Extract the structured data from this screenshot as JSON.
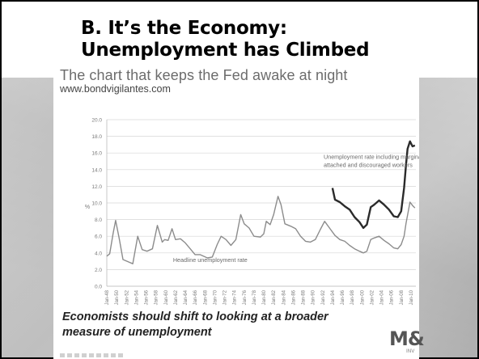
{
  "slide": {
    "title_line1": "B. It’s the Economy:",
    "title_line2": "Unemployment has Climbed"
  },
  "panel": {
    "heading": "The chart that keeps the Fed awake at night",
    "url": "www.bondvigilantes.com",
    "caption": "Economists should shift to looking at a broader measure of unemployment",
    "logo_text": "M&",
    "logo_sub": "INV"
  },
  "colors": {
    "headline_series": "#8c8c8c",
    "broad_series": "#2a2a2a",
    "grid": "#d6d6d6",
    "axis_text": "#7a7a7a"
  },
  "chart_data": {
    "type": "line",
    "title": "",
    "ylabel": "%",
    "xlabel": "",
    "ylim": [
      0,
      20
    ],
    "xlim": [
      1948,
      2011
    ],
    "yticks": [
      "0.0",
      "2.0",
      "4.0",
      "6.0",
      "8.0",
      "10.0",
      "12.0",
      "14.0",
      "16.0",
      "18.0",
      "20.0"
    ],
    "xticks": [
      "Jan-48",
      "Jan-50",
      "Jan-52",
      "Jan-54",
      "Jan-56",
      "Jan-58",
      "Jan-60",
      "Jan-62",
      "Jan-64",
      "Jan-66",
      "Jan-68",
      "Jan-70",
      "Jan-72",
      "Jan-74",
      "Jan-76",
      "Jan-78",
      "Jan-80",
      "Jan-82",
      "Jan-84",
      "Jan-86",
      "Jan-88",
      "Jan-90",
      "Jan-92",
      "Jan-94",
      "Jan-96",
      "Jan-98",
      "Jan-00",
      "Jan-02",
      "Jan-04",
      "Jan-06",
      "Jan-08",
      "Jan-10"
    ],
    "grid": true,
    "annotations": [
      {
        "text": "Unemployment rate including marginally",
        "x": 1992.2,
        "y": 15.3
      },
      {
        "text": "attached and discouraged workers",
        "x": 1992.2,
        "y": 14.3
      },
      {
        "text": "Headline unemployment rate",
        "x": 1961.5,
        "y": 2.9
      }
    ],
    "series": [
      {
        "name": "Headline unemployment rate",
        "x": [
          1948,
          1948.6,
          1949.3,
          1949.8,
          1950.5,
          1951.3,
          1952.5,
          1953.3,
          1954.3,
          1955.2,
          1956.2,
          1957.3,
          1958.3,
          1959.3,
          1959.8,
          1960.5,
          1961.3,
          1962.0,
          1963.0,
          1964.0,
          1965.0,
          1966.0,
          1967.0,
          1968.5,
          1969.5,
          1970.5,
          1971.3,
          1972.3,
          1973.3,
          1974.3,
          1975.3,
          1976.0,
          1977.0,
          1978.0,
          1979.3,
          1980.0,
          1980.5,
          1981.3,
          1982.0,
          1982.9,
          1983.5,
          1984.3,
          1985.5,
          1986.5,
          1987.5,
          1988.5,
          1989.5,
          1990.5,
          1991.5,
          1992.4,
          1993.5,
          1994.5,
          1995.5,
          1996.5,
          1997.5,
          1998.5,
          1999.5,
          2000.3,
          2001.0,
          2001.8,
          2002.5,
          2003.5,
          2004.5,
          2005.5,
          2006.5,
          2007.3,
          2008.0,
          2008.6,
          2009.0,
          2009.8,
          2010.3,
          2010.8
        ],
        "values": [
          3.6,
          3.9,
          6.4,
          7.9,
          5.8,
          3.2,
          2.9,
          2.7,
          6.0,
          4.4,
          4.2,
          4.5,
          7.3,
          5.3,
          5.6,
          5.5,
          6.9,
          5.6,
          5.7,
          5.2,
          4.5,
          3.8,
          3.8,
          3.4,
          3.5,
          5.0,
          6.0,
          5.6,
          4.9,
          5.6,
          8.6,
          7.5,
          7.0,
          6.0,
          5.9,
          6.3,
          7.8,
          7.4,
          8.6,
          10.8,
          9.8,
          7.5,
          7.2,
          6.9,
          6.0,
          5.4,
          5.3,
          5.6,
          6.8,
          7.8,
          6.9,
          6.1,
          5.6,
          5.4,
          4.9,
          4.5,
          4.2,
          4.0,
          4.2,
          5.6,
          5.8,
          6.0,
          5.5,
          5.1,
          4.6,
          4.5,
          5.0,
          6.0,
          7.6,
          10.1,
          9.7,
          9.4
        ]
      },
      {
        "name": "Unemployment rate including marginally attached and discouraged workers",
        "x": [
          1994,
          1994.5,
          1995.5,
          1996.5,
          1997.5,
          1998.5,
          1999.5,
          2000.3,
          2001.0,
          2001.8,
          2002.5,
          2003.5,
          2004.5,
          2005.5,
          2006.5,
          2007.3,
          2008.0,
          2008.6,
          2009.0,
          2009.3,
          2009.8,
          2010.3,
          2010.8
        ],
        "values": [
          11.8,
          10.4,
          10.1,
          9.6,
          9.2,
          8.3,
          7.7,
          7.0,
          7.4,
          9.5,
          9.8,
          10.3,
          9.8,
          9.2,
          8.4,
          8.3,
          9.0,
          11.8,
          14.7,
          16.5,
          17.4,
          16.8,
          16.9
        ]
      }
    ]
  }
}
